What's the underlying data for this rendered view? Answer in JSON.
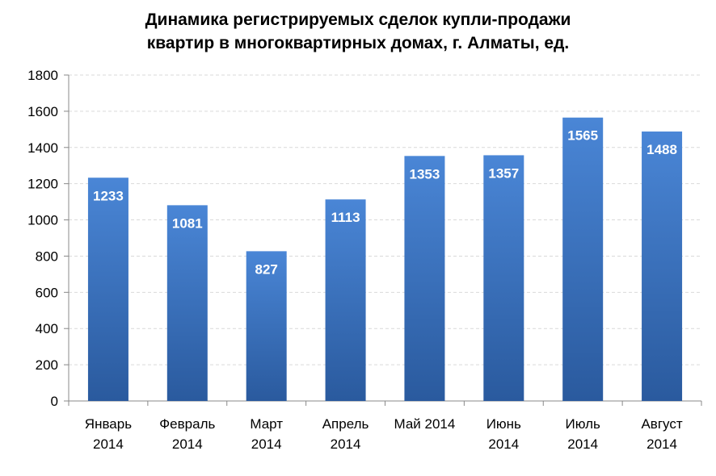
{
  "chart_data": {
    "type": "bar",
    "title_lines": [
      "Динамика регистрируемых  сделок купли-продажи",
      "квартир в многоквартирных домах, г. Алматы, ед."
    ],
    "categories": [
      [
        "Январь",
        "2014"
      ],
      [
        "Февраль",
        "2014"
      ],
      [
        "Март",
        "2014"
      ],
      [
        "Апрель",
        "2014"
      ],
      [
        "Май 2014"
      ],
      [
        "Июнь",
        "2014"
      ],
      [
        "Июль",
        "2014"
      ],
      [
        "Август",
        "2014"
      ]
    ],
    "values": [
      1233,
      1081,
      827,
      1113,
      1353,
      1357,
      1565,
      1488
    ],
    "data_labels": [
      "1233",
      "1081",
      "827",
      "1113",
      "1353",
      "1357",
      "1565",
      "1488"
    ],
    "ylim": [
      0,
      1800
    ],
    "yticks": [
      0,
      200,
      400,
      600,
      800,
      1000,
      1200,
      1400,
      1600,
      1800
    ],
    "xlabel": "",
    "ylabel": "",
    "grid": true,
    "bar_color_top": "#4a86d6",
    "bar_color_bottom": "#2a5a9e",
    "label_color": "#ffffff"
  }
}
